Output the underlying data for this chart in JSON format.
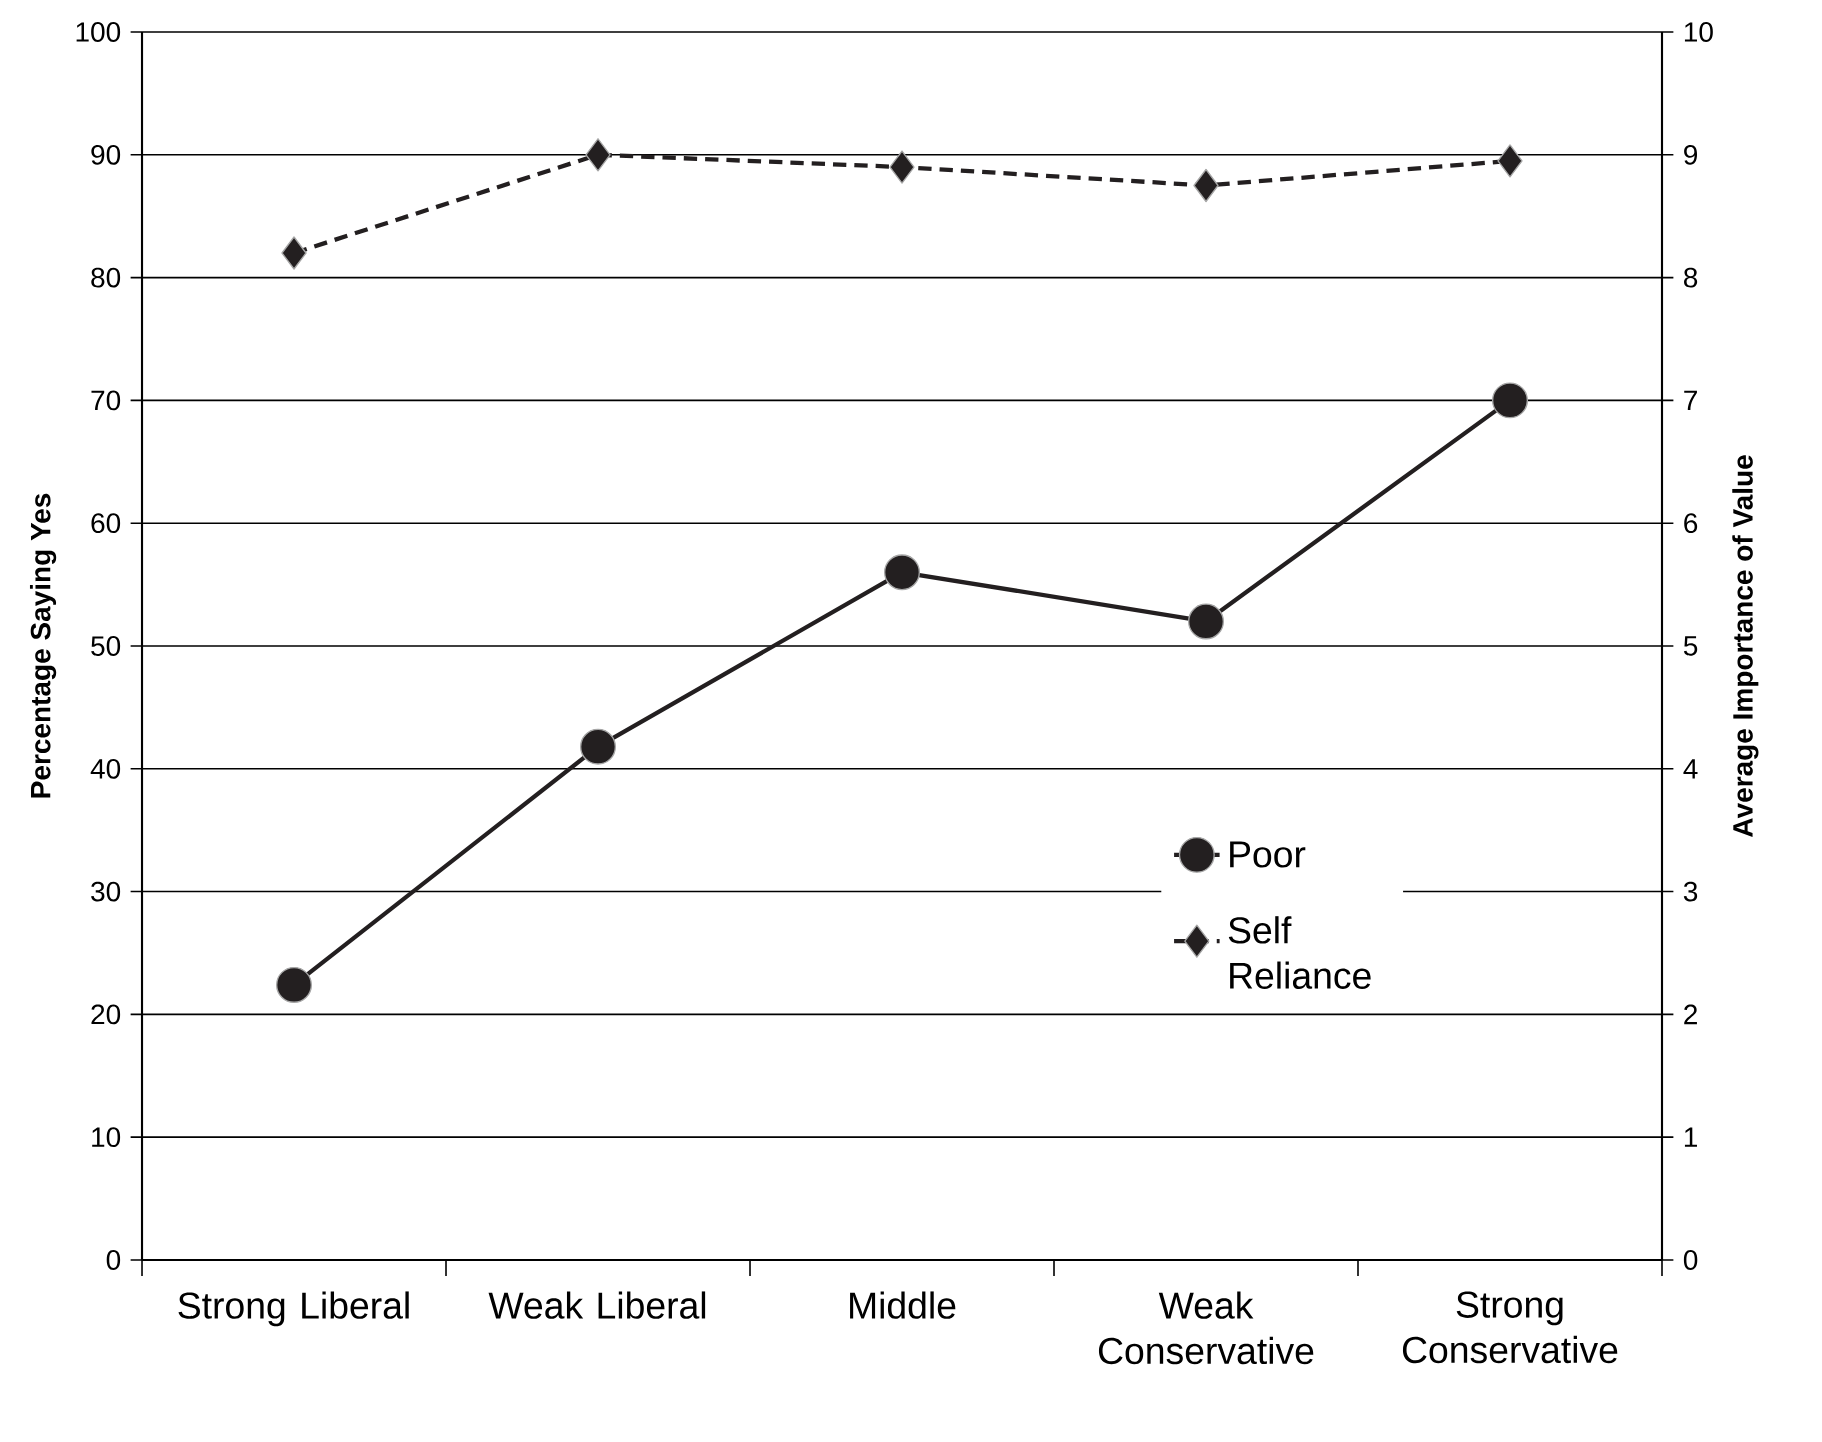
{
  "chart_data": {
    "type": "line",
    "ylabel": "Percentage Saying Yes",
    "y2label": "Average Importance of Value",
    "categories": [
      "Strong Liberal",
      "Weak Liberal",
      "Middle",
      "Weak Conservative",
      "Strong Conservative"
    ],
    "series": [
      {
        "name": "Poor",
        "color": "#231f20",
        "values": [
          22.4,
          41.8,
          56,
          52,
          70
        ],
        "marker": "circle",
        "line_style": "solid"
      },
      {
        "name": "Self Reliance",
        "color": "#231f20",
        "values": [
          8.2,
          9,
          8.9,
          8.75,
          8.95
        ],
        "marker": "diamond",
        "line_style": "dashed",
        "axis": "y2"
      }
    ],
    "ylim": [
      0,
      100
    ],
    "yticks": [
      0,
      10,
      20,
      30,
      40,
      50,
      60,
      70,
      80,
      90,
      100
    ],
    "y2lim": [
      0,
      10
    ],
    "y2ticks": [
      0,
      1,
      2,
      3,
      4,
      5,
      6,
      7,
      8,
      9,
      10
    ],
    "grid": "y",
    "legend": "right"
  }
}
